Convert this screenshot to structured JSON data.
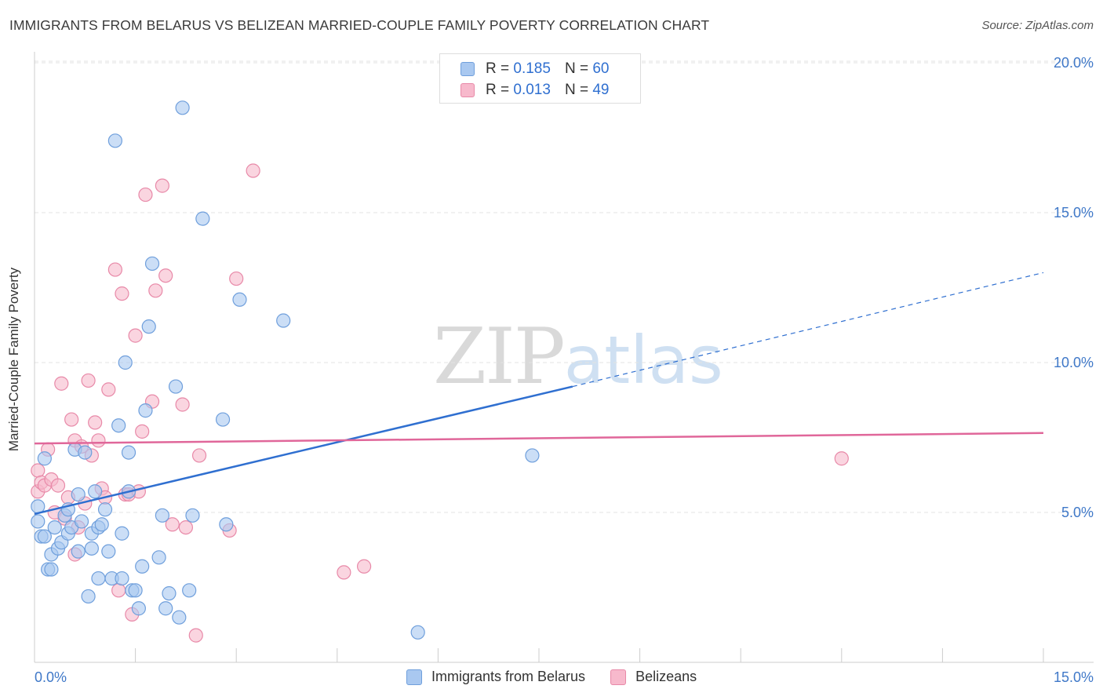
{
  "title": "IMMIGRANTS FROM BELARUS VS BELIZEAN MARRIED-COUPLE FAMILY POVERTY CORRELATION CHART",
  "source": "Source: ZipAtlas.com",
  "watermark": {
    "zip": "ZIP",
    "atlas": "atlas"
  },
  "legend": {
    "r_label": "R =",
    "n_label": "N =",
    "series1": {
      "r": "0.185",
      "n": "60"
    },
    "series2": {
      "r": "0.013",
      "n": "49"
    }
  },
  "colors": {
    "series1_fill": "#a9c8f0",
    "series1_stroke": "#6f9fdc",
    "series1_line": "#2f6fd0",
    "series2_fill": "#f7b9cc",
    "series2_stroke": "#e889a8",
    "series2_line": "#e0679a",
    "axis_text": "#3f78c8",
    "grid": "#e3e3e3"
  },
  "chart_data": {
    "type": "scatter",
    "title": "IMMIGRANTS FROM BELARUS VS BELIZEAN MARRIED-COUPLE FAMILY POVERTY CORRELATION CHART",
    "xlabel": "",
    "ylabel": "Married-Couple Family Poverty",
    "xlim": [
      0,
      15
    ],
    "ylim": [
      0,
      20
    ],
    "x_tick_labels": [
      "0.0%",
      "15.0%"
    ],
    "y_tick_labels": [
      "5.0%",
      "10.0%",
      "15.0%",
      "20.0%"
    ],
    "y_ticks": [
      5,
      10,
      15,
      20
    ],
    "grid": true,
    "legend_position": "top-center",
    "series": [
      {
        "name": "Immigrants from Belarus",
        "r": 0.185,
        "n": 60,
        "trend": {
          "x": [
            0,
            8.0
          ],
          "y": [
            4.95,
            9.2
          ],
          "dashed_to": [
            15,
            13.0
          ]
        },
        "points": [
          [
            0.05,
            4.7
          ],
          [
            0.05,
            5.2
          ],
          [
            0.1,
            4.2
          ],
          [
            0.15,
            4.2
          ],
          [
            0.2,
            3.1
          ],
          [
            0.25,
            3.6
          ],
          [
            0.25,
            3.1
          ],
          [
            0.3,
            4.5
          ],
          [
            0.35,
            3.8
          ],
          [
            0.4,
            4.0
          ],
          [
            0.45,
            4.9
          ],
          [
            0.5,
            5.1
          ],
          [
            0.5,
            4.3
          ],
          [
            0.55,
            4.5
          ],
          [
            0.6,
            7.1
          ],
          [
            0.65,
            5.6
          ],
          [
            0.65,
            3.7
          ],
          [
            0.7,
            4.7
          ],
          [
            0.75,
            7.0
          ],
          [
            0.8,
            2.2
          ],
          [
            0.85,
            3.8
          ],
          [
            0.85,
            4.3
          ],
          [
            0.9,
            5.7
          ],
          [
            0.95,
            4.5
          ],
          [
            0.95,
            2.8
          ],
          [
            1.0,
            4.6
          ],
          [
            1.05,
            5.1
          ],
          [
            1.1,
            3.7
          ],
          [
            1.15,
            2.8
          ],
          [
            1.2,
            17.4
          ],
          [
            1.25,
            7.9
          ],
          [
            1.3,
            2.8
          ],
          [
            1.3,
            4.3
          ],
          [
            1.35,
            10.0
          ],
          [
            1.4,
            7.0
          ],
          [
            1.4,
            5.7
          ],
          [
            1.45,
            2.4
          ],
          [
            1.5,
            2.4
          ],
          [
            1.55,
            1.8
          ],
          [
            1.6,
            3.2
          ],
          [
            1.65,
            8.4
          ],
          [
            1.7,
            11.2
          ],
          [
            1.75,
            13.3
          ],
          [
            1.85,
            3.5
          ],
          [
            1.9,
            4.9
          ],
          [
            1.95,
            1.8
          ],
          [
            2.0,
            2.3
          ],
          [
            2.1,
            9.2
          ],
          [
            2.15,
            1.5
          ],
          [
            2.2,
            18.5
          ],
          [
            2.3,
            2.4
          ],
          [
            2.35,
            4.9
          ],
          [
            2.5,
            14.8
          ],
          [
            2.8,
            8.1
          ],
          [
            2.85,
            4.6
          ],
          [
            3.05,
            12.1
          ],
          [
            3.7,
            11.4
          ],
          [
            5.7,
            1.0
          ],
          [
            7.4,
            6.9
          ],
          [
            0.15,
            6.8
          ]
        ]
      },
      {
        "name": "Belizeans",
        "r": 0.013,
        "n": 49,
        "trend": {
          "x": [
            0,
            15
          ],
          "y": [
            7.3,
            7.65
          ]
        },
        "points": [
          [
            0.05,
            6.4
          ],
          [
            0.05,
            5.7
          ],
          [
            0.1,
            6.0
          ],
          [
            0.15,
            5.9
          ],
          [
            0.2,
            7.1
          ],
          [
            0.25,
            6.1
          ],
          [
            0.3,
            5.0
          ],
          [
            0.35,
            5.9
          ],
          [
            0.4,
            9.3
          ],
          [
            0.45,
            4.8
          ],
          [
            0.5,
            5.5
          ],
          [
            0.55,
            8.1
          ],
          [
            0.6,
            3.6
          ],
          [
            0.6,
            7.4
          ],
          [
            0.65,
            4.5
          ],
          [
            0.7,
            7.2
          ],
          [
            0.75,
            5.3
          ],
          [
            0.8,
            9.4
          ],
          [
            0.85,
            6.9
          ],
          [
            0.9,
            8.0
          ],
          [
            0.95,
            7.4
          ],
          [
            1.0,
            5.8
          ],
          [
            1.05,
            5.5
          ],
          [
            1.1,
            9.1
          ],
          [
            1.2,
            13.1
          ],
          [
            1.25,
            2.4
          ],
          [
            1.3,
            12.3
          ],
          [
            1.35,
            5.6
          ],
          [
            1.4,
            5.6
          ],
          [
            1.45,
            1.6
          ],
          [
            1.5,
            10.9
          ],
          [
            1.55,
            5.7
          ],
          [
            1.6,
            7.7
          ],
          [
            1.65,
            15.6
          ],
          [
            1.75,
            8.7
          ],
          [
            1.8,
            12.4
          ],
          [
            1.9,
            15.9
          ],
          [
            1.95,
            12.9
          ],
          [
            2.05,
            4.6
          ],
          [
            2.2,
            8.6
          ],
          [
            2.25,
            4.5
          ],
          [
            2.4,
            0.9
          ],
          [
            2.45,
            6.9
          ],
          [
            2.9,
            4.4
          ],
          [
            3.0,
            12.8
          ],
          [
            3.25,
            16.4
          ],
          [
            4.6,
            3.0
          ],
          [
            4.9,
            3.2
          ],
          [
            12.0,
            6.8
          ]
        ]
      }
    ]
  }
}
